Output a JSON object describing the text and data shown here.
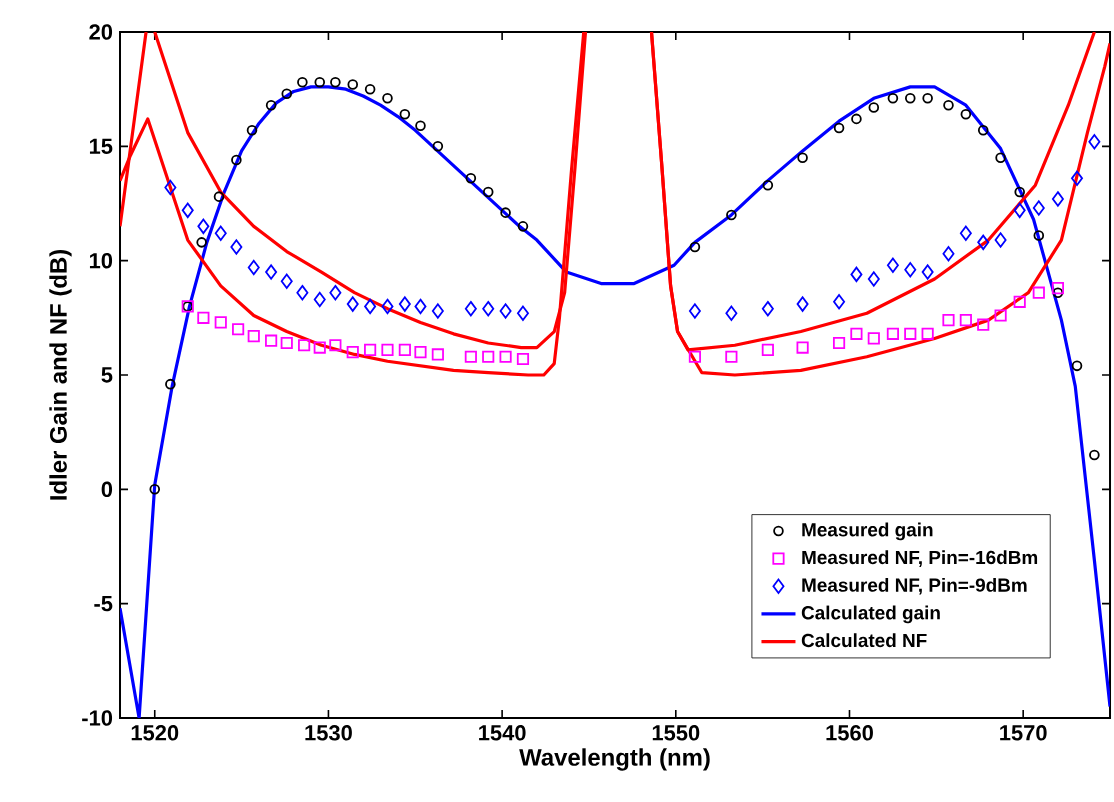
{
  "chart_data": {
    "type": "line",
    "xlabel": "Wavelength (nm)",
    "ylabel": "Idler Gain and NF (dB)",
    "xlim": [
      1518,
      1575
    ],
    "ylim": [
      -10,
      20
    ],
    "xticks": [
      1520,
      1530,
      1540,
      1550,
      1560,
      1570
    ],
    "yticks": [
      -10,
      -5,
      0,
      5,
      10,
      15,
      20
    ],
    "grid": false,
    "legend": "bottom right",
    "series": [
      {
        "name": "Measured gain",
        "type": "scatter",
        "marker": "circle",
        "color": "#000000",
        "x": [
          1520.0,
          1520.9,
          1521.9,
          1522.7,
          1523.7,
          1524.7,
          1525.6,
          1526.7,
          1527.6,
          1528.5,
          1529.5,
          1530.4,
          1531.4,
          1532.4,
          1533.4,
          1534.4,
          1535.3,
          1536.3,
          1538.2,
          1539.2,
          1540.2,
          1541.2,
          1551.1,
          1553.2,
          1555.3,
          1557.3,
          1559.4,
          1560.4,
          1561.4,
          1562.5,
          1563.5,
          1564.5,
          1565.7,
          1566.7,
          1567.7,
          1568.7,
          1569.8,
          1570.9,
          1572.0,
          1573.1,
          1574.1
        ],
        "values": [
          0.0,
          4.6,
          8.0,
          10.8,
          12.8,
          14.4,
          15.7,
          16.8,
          17.3,
          17.8,
          17.8,
          17.8,
          17.7,
          17.5,
          17.1,
          16.4,
          15.9,
          15.0,
          13.6,
          13.0,
          12.1,
          11.5,
          10.6,
          12.0,
          13.3,
          14.5,
          15.8,
          16.2,
          16.7,
          17.1,
          17.1,
          17.1,
          16.8,
          16.4,
          15.7,
          14.5,
          13.0,
          11.1,
          8.6,
          5.4,
          1.5
        ]
      },
      {
        "name": "Measured NF, Pin=-16dBm",
        "type": "scatter",
        "marker": "square",
        "color": "#ff00ff",
        "x": [
          1521.9,
          1522.8,
          1523.8,
          1524.8,
          1525.7,
          1526.7,
          1527.6,
          1528.6,
          1529.5,
          1530.4,
          1531.4,
          1532.4,
          1533.4,
          1534.4,
          1535.3,
          1536.3,
          1538.2,
          1539.2,
          1540.2,
          1541.2,
          1551.1,
          1553.2,
          1555.3,
          1557.3,
          1559.4,
          1560.4,
          1561.4,
          1562.5,
          1563.5,
          1564.5,
          1565.7,
          1566.7,
          1567.7,
          1568.7,
          1569.8,
          1570.9,
          1572.0
        ],
        "values": [
          8.0,
          7.5,
          7.3,
          7.0,
          6.7,
          6.5,
          6.4,
          6.3,
          6.2,
          6.3,
          6.0,
          6.1,
          6.1,
          6.1,
          6.0,
          5.9,
          5.8,
          5.8,
          5.8,
          5.7,
          5.8,
          5.8,
          6.1,
          6.2,
          6.4,
          6.8,
          6.6,
          6.8,
          6.8,
          6.8,
          7.4,
          7.4,
          7.2,
          7.6,
          8.2,
          8.6,
          8.8
        ]
      },
      {
        "name": "Measured NF, Pin=-9dBm",
        "type": "scatter",
        "marker": "diamond",
        "color": "#0000ff",
        "x": [
          1520.9,
          1521.9,
          1522.8,
          1523.8,
          1524.7,
          1525.7,
          1526.7,
          1527.6,
          1528.5,
          1529.5,
          1530.4,
          1531.4,
          1532.4,
          1533.4,
          1534.4,
          1535.3,
          1536.3,
          1538.2,
          1539.2,
          1540.2,
          1541.2,
          1551.1,
          1553.2,
          1555.3,
          1557.3,
          1559.4,
          1560.4,
          1561.4,
          1562.5,
          1563.5,
          1564.5,
          1565.7,
          1566.7,
          1567.7,
          1568.7,
          1569.8,
          1570.9,
          1572.0,
          1573.1,
          1574.1
        ],
        "values": [
          13.2,
          12.2,
          11.5,
          11.2,
          10.6,
          9.7,
          9.5,
          9.1,
          8.6,
          8.3,
          8.6,
          8.1,
          8.0,
          8.0,
          8.1,
          8.0,
          7.8,
          7.9,
          7.9,
          7.8,
          7.7,
          7.8,
          7.7,
          7.9,
          8.1,
          8.2,
          9.4,
          9.2,
          9.8,
          9.6,
          9.5,
          10.3,
          11.2,
          10.8,
          10.9,
          12.2,
          12.3,
          12.7,
          13.6,
          15.2
        ]
      },
      {
        "name": "Calculated gain",
        "color": "#0000ff",
        "x": [
          1518.0,
          1519.1,
          1520.0,
          1521.0,
          1522.0,
          1523.0,
          1524.0,
          1525.0,
          1526.0,
          1527.0,
          1528.0,
          1529.0,
          1530.0,
          1531.0,
          1532.0,
          1533.0,
          1534.0,
          1535.0,
          1536.0,
          1537.0,
          1538.0,
          1539.0,
          1540.0,
          1541.0,
          1542.0,
          1543.7,
          1545.7,
          1547.6,
          1549.9,
          1551.1,
          1553.2,
          1555.3,
          1557.3,
          1559.4,
          1561.4,
          1563.5,
          1564.9,
          1566.7,
          1568.7,
          1570.6,
          1572.2,
          1573.0,
          1574.1,
          1575.0
        ],
        "values": [
          -5.2,
          -10.0,
          0.2,
          4.5,
          8.0,
          10.8,
          13.0,
          14.8,
          16.0,
          16.9,
          17.4,
          17.6,
          17.6,
          17.5,
          17.2,
          16.8,
          16.3,
          15.7,
          15.0,
          14.3,
          13.6,
          12.9,
          12.2,
          11.5,
          10.9,
          9.5,
          9.0,
          9.0,
          9.8,
          10.8,
          12.0,
          13.5,
          14.8,
          16.1,
          17.1,
          17.6,
          17.6,
          16.8,
          14.9,
          11.8,
          7.4,
          4.5,
          -3.1,
          -9.5
        ]
      },
      {
        "name": "Calculated NF",
        "color": "#ff0000",
        "x": [
          1518.0,
          1519.5,
          1519.7,
          1520.0,
          1521.9,
          1523.8,
          1525.7,
          1527.6,
          1529.6,
          1531.5,
          1533.4,
          1535.3,
          1537.2,
          1539.2,
          1541.1,
          1542.0,
          1543.0,
          1543.6,
          1544.2,
          1544.8,
          1546.7,
          1548.6,
          1549.2,
          1549.7,
          1550.1,
          1550.7,
          1553.4,
          1557.2,
          1561.0,
          1564.9,
          1568.0,
          1570.7,
          1572.6,
          1574.1
        ],
        "values": [
          11.5,
          20,
          null,
          20,
          15.6,
          13.0,
          11.5,
          10.4,
          9.5,
          8.6,
          7.9,
          7.3,
          6.8,
          6.4,
          6.2,
          6.2,
          6.9,
          8.6,
          14.1,
          20,
          null,
          20,
          14.1,
          8.9,
          6.9,
          6.1,
          6.3,
          6.9,
          7.7,
          9.2,
          10.9,
          13.3,
          16.8,
          20
        ]
      },
      {
        "color": "#ff0000",
        "x": [
          1518.0,
          1518.6,
          1519.6,
          1521.9,
          1523.8,
          1525.7,
          1527.6,
          1529.6,
          1531.5,
          1533.4,
          1535.3,
          1537.2,
          1539.2,
          1541.5,
          1542.4,
          1543.0,
          1543.3,
          1544.0,
          1544.7,
          1546.7,
          1548.6,
          1549.2,
          1549.7,
          1550.1,
          1551.5,
          1553.4,
          1557.2,
          1561.0,
          1564.9,
          1568.0,
          1570.3,
          1572.2,
          1573.7,
          1574.7,
          1575.0
        ],
        "values": [
          13.5,
          14.6,
          16.2,
          10.9,
          8.9,
          7.6,
          6.9,
          6.3,
          5.9,
          5.6,
          5.4,
          5.2,
          5.1,
          5.0,
          5.0,
          5.5,
          7.5,
          14.0,
          20,
          null,
          20,
          14.1,
          8.9,
          6.9,
          5.1,
          5.0,
          5.2,
          5.8,
          6.6,
          7.4,
          8.6,
          10.9,
          15.6,
          18.5,
          19.5
        ]
      }
    ]
  }
}
